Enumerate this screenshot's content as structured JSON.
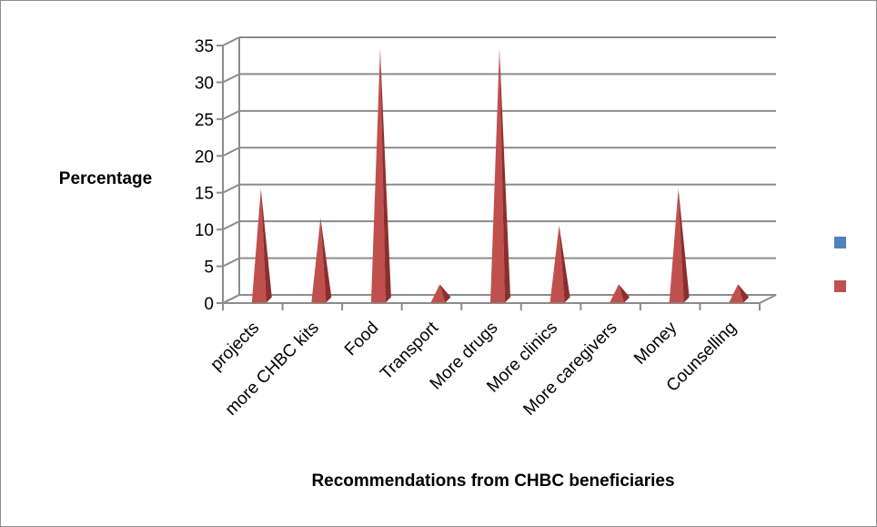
{
  "chart_data": {
    "type": "bar",
    "style": "3d-pyramid",
    "categories": [
      "projects",
      "more CHBC kits",
      "Food",
      "Transport",
      "More drugs",
      "More clinics",
      "More caregivers",
      "Money",
      "Counselling"
    ],
    "series": [
      {
        "values": [
          0,
          0,
          0,
          0,
          0,
          0,
          0,
          0,
          0
        ],
        "color": "#4f81bd"
      },
      {
        "values": [
          15,
          11,
          34,
          2,
          34,
          10,
          2,
          15,
          2
        ],
        "color": "#c0504d"
      }
    ],
    "xlabel": "Recommendations from CHBC beneficiaries",
    "ylabel": "Percentage",
    "ylim": [
      0,
      35
    ],
    "yticks": [
      "0",
      "5",
      "10",
      "15",
      "20",
      "25",
      "30",
      "35"
    ],
    "grid": true,
    "legend_position": "right"
  }
}
